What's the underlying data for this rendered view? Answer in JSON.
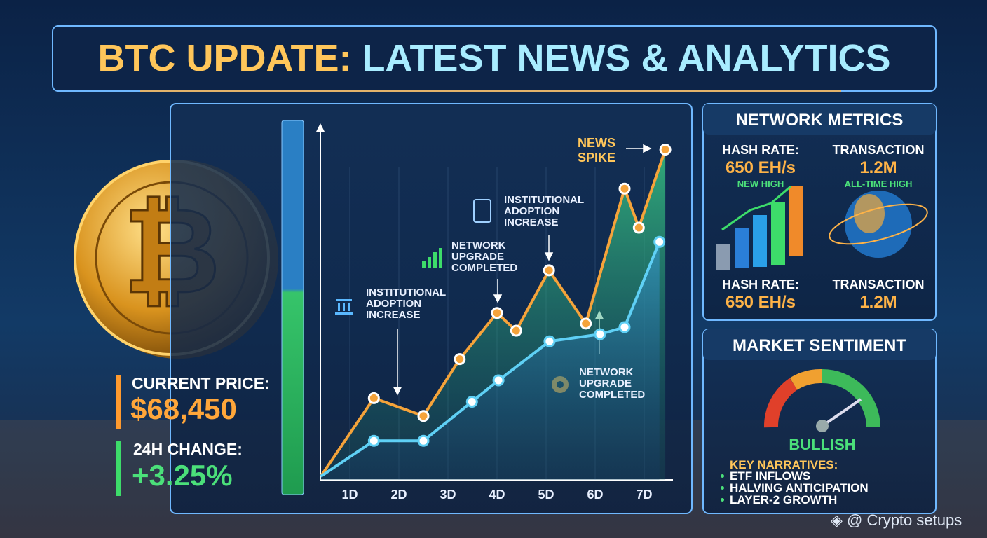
{
  "header": {
    "title_lead": "BTC UPDATE:",
    "title_rest": "LATEST NEWS & ANALYTICS"
  },
  "price_panel": {
    "price_label": "CURRENT PRICE:",
    "price": "$68,450",
    "change_label": "24H CHANGE:",
    "change": "+3.25%"
  },
  "chart_data": {
    "type": "line",
    "xlim": [
      0.4,
      7.5
    ],
    "ylim": [
      0,
      100
    ],
    "xticks": [
      {
        "value": 1,
        "label": "1D"
      },
      {
        "value": 2,
        "label": "2D"
      },
      {
        "value": 3,
        "label": "3D"
      },
      {
        "value": 4,
        "label": "4D"
      },
      {
        "value": 5,
        "label": "5D"
      },
      {
        "value": 6,
        "label": "6D"
      },
      {
        "value": 7,
        "label": "7D"
      }
    ],
    "series": [
      {
        "color": "#f5a33a",
        "x": [
          0.41,
          1.49,
          2.5,
          3.24,
          4.0,
          4.39,
          5.06,
          5.81,
          6.6,
          6.89,
          7.43
        ],
        "values": [
          1,
          23,
          18,
          34,
          47,
          42,
          59,
          44,
          82,
          71,
          93
        ]
      },
      {
        "color": "#5fd0f5",
        "x": [
          0.41,
          1.49,
          2.5,
          3.49,
          4.03,
          5.07,
          6.1,
          6.6,
          7.31
        ],
        "values": [
          1,
          11,
          11,
          22,
          28,
          39,
          41,
          43,
          67
        ]
      }
    ],
    "annotations": [
      "NEWS SPIKE",
      "INSTITUTIONAL ADOPTION INCREASE",
      "NETWORK UPGRADE COMPLETED",
      "INSTITUTIONAL ADOPTION INCREASE",
      "NETWORK UPGRADE COMPLETED"
    ]
  },
  "network_metrics": {
    "title": "NETWORK METRICS",
    "items": [
      {
        "label": "HASH RATE:",
        "value": "650 EH/s",
        "note": "NEW HIGH"
      },
      {
        "label": "TRANSACTION",
        "value": "1.2M",
        "note": "ALL-TIME HIGH"
      },
      {
        "label": "HASH RATE:",
        "value": "650 EH/s"
      },
      {
        "label": "TRANSACTION",
        "value": "1.2M"
      }
    ]
  },
  "market_sentiment": {
    "title": "MARKET SENTIMENT",
    "status": "BULLISH",
    "narratives_title": "KEY NARRATIVES:",
    "narratives": [
      "ETF INFLOWS",
      "HALVING ANTICIPATION",
      "LAYER-2 GROWTH"
    ]
  },
  "watermark": "@ Crypto setups"
}
